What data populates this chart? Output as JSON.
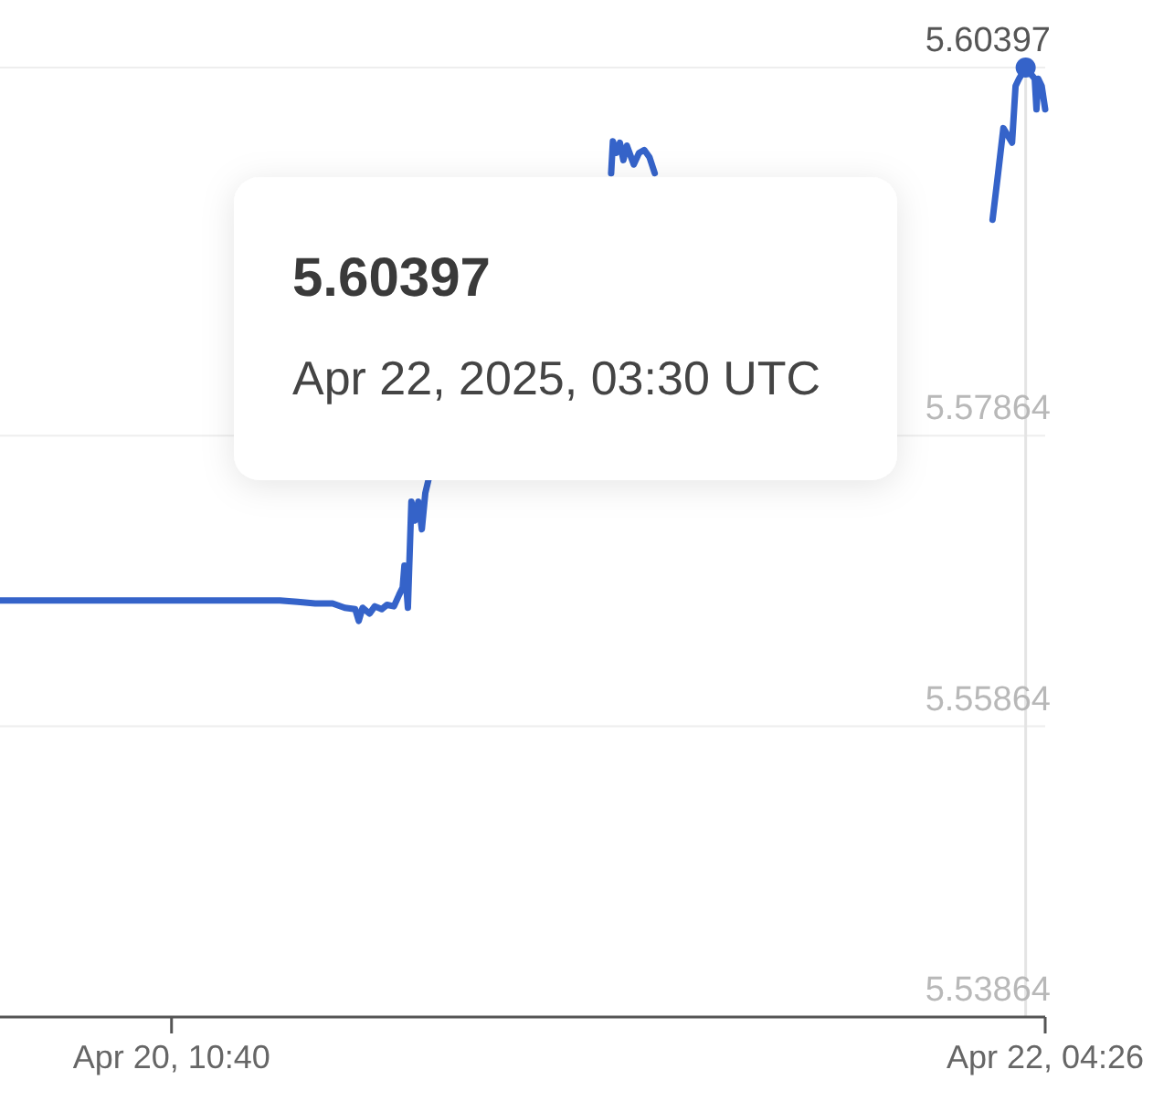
{
  "chart_data": {
    "type": "line",
    "xlim": [
      "2025-04-20T02:28",
      "2025-04-22T04:26"
    ],
    "xticks": [
      {
        "value": "2025-04-20T10:40",
        "label": "Apr 20, 10:40"
      },
      {
        "value": "2025-04-22T04:26",
        "label": "Apr 22, 04:26"
      }
    ],
    "ylim": [
      5.53864,
      5.60397
    ],
    "yticks": [
      5.53864,
      5.55864,
      5.57864,
      5.60397
    ],
    "grid": "y",
    "series": [
      {
        "color": "#3563c9",
        "x": [
          "2025-04-20T02:28",
          "2025-04-20T05:49",
          "2025-04-20T09:10",
          "2025-04-20T12:31",
          "2025-04-20T15:51",
          "2025-04-20T16:42",
          "2025-04-20T17:32",
          "2025-04-20T18:22",
          "2025-04-20T18:57",
          "2025-04-20T19:27",
          "2025-04-20T19:37",
          "2025-04-20T19:48",
          "2025-04-20T20:08",
          "2025-04-20T20:23",
          "2025-04-20T20:43",
          "2025-04-20T20:58",
          "2025-04-20T21:18",
          "2025-04-20T21:33",
          "2025-04-20T21:43",
          "2025-04-20T21:48",
          "2025-04-20T21:53",
          "2025-04-20T21:58",
          "2025-04-20T22:08",
          "2025-04-20T22:18",
          "2025-04-20T22:28",
          "2025-04-20T22:38",
          "2025-04-20T22:48",
          "2025-04-20T22:58",
          "2025-04-21T03:35",
          "2025-04-21T07:41",
          "2025-04-21T07:46",
          "2025-04-21T07:56",
          "2025-04-21T08:06",
          "2025-04-21T08:16",
          "2025-04-21T08:26",
          "2025-04-21T08:46",
          "2025-04-21T09:01",
          "2025-04-21T09:16",
          "2025-04-21T09:31",
          "2025-04-21T09:46",
          "2025-04-21T17:48",
          "2025-04-22T01:55",
          "2025-04-22T02:11",
          "2025-04-22T02:26",
          "2025-04-22T02:51",
          "2025-04-22T03:01",
          "2025-04-22T03:11",
          "2025-04-22T03:30",
          "2025-04-22T03:56",
          "2025-04-22T04:01",
          "2025-04-22T04:06",
          "2025-04-22T04:16",
          "2025-04-22T04:26"
        ],
        "values": [
          5.5673,
          5.5673,
          5.5673,
          5.5673,
          5.5673,
          5.5672,
          5.5671,
          5.5671,
          5.5668,
          5.5667,
          5.5659,
          5.5668,
          5.5664,
          5.5669,
          5.5667,
          5.567,
          5.5669,
          5.5677,
          5.5682,
          5.5697,
          5.5684,
          5.5668,
          5.5741,
          5.5728,
          5.5741,
          5.5722,
          5.5747,
          5.5757,
          null,
          5.5967,
          5.5989,
          5.5981,
          5.5988,
          5.5976,
          5.5986,
          5.5973,
          5.5981,
          5.5983,
          5.5978,
          5.5967,
          null,
          5.5935,
          5.5967,
          5.5998,
          5.5988,
          5.6027,
          5.6032,
          5.60397,
          5.6032,
          5.6011,
          5.6032,
          5.6027,
          5.6011
        ]
      },
      {
        "type": "scatter",
        "color": "#3563c9",
        "marker": "circle",
        "x": [
          "2025-04-22T03:30"
        ],
        "values": [
          5.60397
        ]
      }
    ],
    "ref_lines": [
      {
        "axis": "x",
        "value": "2025-04-22T03:30",
        "color": "#e4e4e4"
      }
    ],
    "annotations": [
      "5.60397",
      "Apr 22, 2025, 03:30 UTC"
    ]
  }
}
